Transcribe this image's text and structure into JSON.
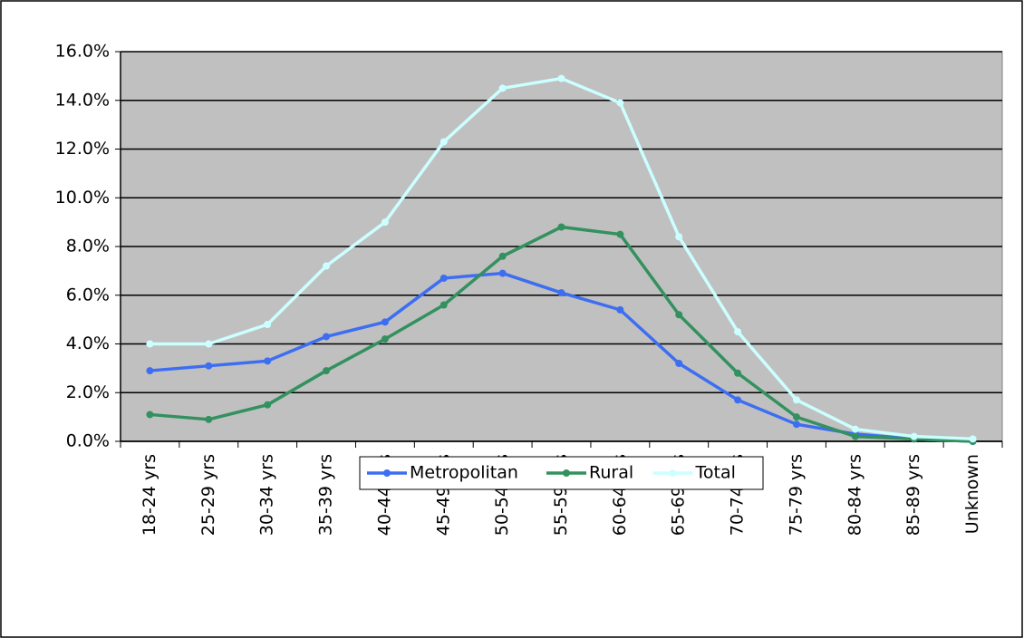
{
  "chart_data": {
    "type": "line",
    "categories": [
      "18-24 yrs",
      "25-29 yrs",
      "30-34 yrs",
      "35-39 yrs",
      "40-44 yrs",
      "45-49 yrs",
      "50-54 yrs",
      "55-59 yrs",
      "60-64 yrs",
      "65-69 yrs",
      "70-74 yrs",
      "75-79 yrs",
      "80-84 yrs",
      "85-89 yrs",
      "Unknown"
    ],
    "series": [
      {
        "name": "Metropolitan",
        "color": "#3d6ef2",
        "values": [
          2.9,
          3.1,
          3.3,
          4.3,
          4.9,
          6.7,
          6.9,
          6.1,
          5.4,
          3.2,
          1.7,
          0.7,
          0.3,
          0.1,
          0.0
        ]
      },
      {
        "name": "Rural",
        "color": "#33915f",
        "values": [
          1.1,
          0.9,
          1.5,
          2.9,
          4.2,
          5.6,
          7.6,
          8.8,
          8.5,
          5.2,
          2.8,
          1.0,
          0.2,
          0.1,
          0.0
        ]
      },
      {
        "name": "Total",
        "color": "#ccffff",
        "values": [
          4.0,
          4.0,
          4.8,
          7.2,
          9.0,
          12.3,
          14.5,
          14.9,
          13.9,
          8.4,
          4.5,
          1.7,
          0.5,
          0.2,
          0.1
        ]
      }
    ],
    "ylim": [
      0,
      16
    ],
    "yticks": [
      {
        "value": 0,
        "label": "0.0%"
      },
      {
        "value": 2,
        "label": "2.0%"
      },
      {
        "value": 4,
        "label": "4.0%"
      },
      {
        "value": 6,
        "label": "6.0%"
      },
      {
        "value": 8,
        "label": "8.0%"
      },
      {
        "value": 10,
        "label": "10.0%"
      },
      {
        "value": 12,
        "label": "12.0%"
      },
      {
        "value": 14,
        "label": "14.0%"
      },
      {
        "value": 16,
        "label": "16.0%"
      }
    ],
    "grid": true,
    "legend": "bottom",
    "plot_background": "#c0c0c0"
  }
}
